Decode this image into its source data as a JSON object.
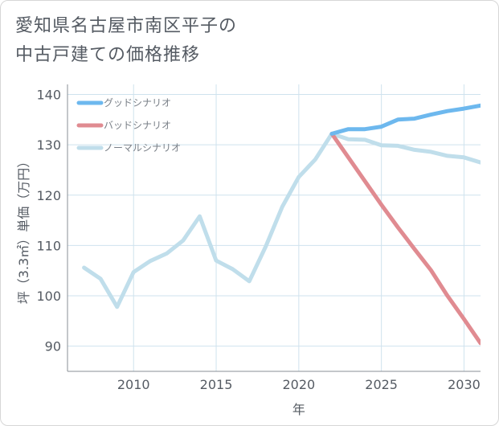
{
  "title_line1": "愛知県名古屋市南区平子の",
  "title_line2": "中古戸建ての価格推移",
  "chart_data": {
    "type": "line",
    "title": "愛知県名古屋市南区平子の中古戸建ての価格推移",
    "xlabel": "年",
    "ylabel": "坪（3.3㎡）単価（万円）",
    "xlim": [
      2006,
      2031
    ],
    "ylim": [
      85,
      142
    ],
    "xticks": [
      2010,
      2015,
      2020,
      2025,
      2030
    ],
    "yticks": [
      90,
      100,
      110,
      120,
      130,
      140
    ],
    "grid": true,
    "legend_position": "top-left",
    "series": [
      {
        "name": "グッドシナリオ",
        "color": "#6db8ee",
        "x": [
          2022,
          2023,
          2024,
          2025,
          2026,
          2027,
          2028,
          2029,
          2030,
          2031
        ],
        "values": [
          132.2,
          133.1,
          133.1,
          133.6,
          135.0,
          135.2,
          136.0,
          136.7,
          137.2,
          137.8
        ]
      },
      {
        "name": "バッドシナリオ",
        "color": "#e08b91",
        "x": [
          2022,
          2023,
          2024,
          2025,
          2026,
          2027,
          2028,
          2029,
          2030,
          2031
        ],
        "values": [
          132.2,
          127.5,
          122.8,
          118.1,
          113.6,
          109.3,
          105.1,
          100.0,
          95.4,
          90.6
        ]
      },
      {
        "name": "ノーマルシナリオ",
        "color": "#c0deeb",
        "x": [
          2007,
          2008,
          2009,
          2010,
          2011,
          2012,
          2013,
          2014,
          2015,
          2016,
          2017,
          2018,
          2019,
          2020,
          2021,
          2022,
          2023,
          2024,
          2025,
          2026,
          2027,
          2028,
          2029,
          2030,
          2031
        ],
        "values": [
          105.6,
          103.4,
          97.8,
          104.7,
          106.9,
          108.4,
          111.0,
          115.8,
          107.0,
          105.3,
          102.9,
          109.8,
          117.7,
          123.6,
          127.1,
          132.2,
          131.1,
          131.0,
          129.9,
          129.8,
          129.0,
          128.6,
          127.8,
          127.5,
          126.5
        ]
      }
    ]
  }
}
